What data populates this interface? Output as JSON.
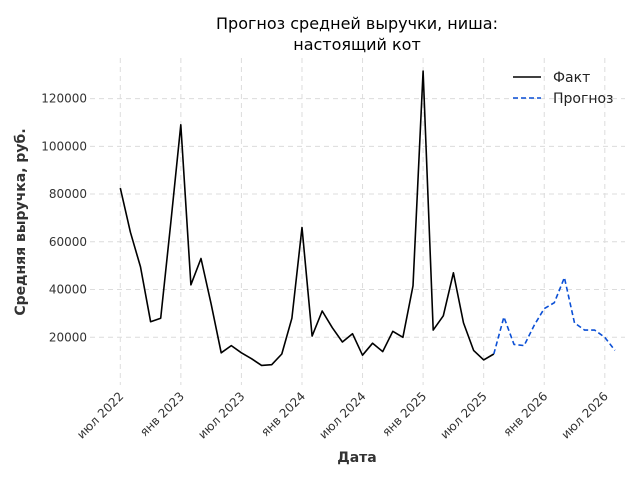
{
  "chart_data": {
    "type": "line",
    "title_line1": "Прогноз средней выручки, ниша:",
    "title_line2": "настоящий кот",
    "xlabel": "Дата",
    "ylabel": "Средняя выручка, руб.",
    "x_ticks": [
      "июл 2022",
      "янв 2023",
      "июл 2023",
      "янв 2024",
      "июл 2024",
      "янв 2025",
      "июл 2025",
      "янв 2026",
      "июл 2026"
    ],
    "y_ticks": [
      "20000",
      "40000",
      "60000",
      "80000",
      "100000",
      "120000"
    ],
    "ylim": [
      0,
      137000
    ],
    "xlim": [
      "2022-04",
      "2026-09"
    ],
    "grid": true,
    "legend_position": "top-right",
    "series": [
      {
        "name": "Факт",
        "color": "#000000",
        "style": "solid",
        "x": [
          "2022-07",
          "2022-08",
          "2022-09",
          "2022-10",
          "2022-11",
          "2022-12",
          "2023-01",
          "2023-02",
          "2023-03",
          "2023-04",
          "2023-05",
          "2023-06",
          "2023-07",
          "2023-08",
          "2023-09",
          "2023-10",
          "2023-11",
          "2023-12",
          "2024-01",
          "2024-02",
          "2024-03",
          "2024-04",
          "2024-05",
          "2024-06",
          "2024-07",
          "2024-08",
          "2024-09",
          "2024-10",
          "2024-11",
          "2024-12",
          "2025-01",
          "2025-02",
          "2025-03",
          "2025-04",
          "2025-05",
          "2025-06",
          "2025-07",
          "2025-08"
        ],
        "values": [
          82500,
          64000,
          49500,
          26500,
          28000,
          68000,
          109000,
          42000,
          53000,
          34000,
          13500,
          16500,
          13500,
          11000,
          8200,
          8500,
          13000,
          28000,
          66000,
          20500,
          31000,
          24000,
          18000,
          21500,
          12500,
          17500,
          14000,
          22500,
          20000,
          41500,
          131500,
          23000,
          29000,
          47000,
          26000,
          14500,
          10500,
          13000
        ]
      },
      {
        "name": "Прогноз",
        "color": "#0a4fd6",
        "style": "dashed",
        "x": [
          "2025-08",
          "2025-09",
          "2025-10",
          "2025-11",
          "2025-12",
          "2026-01",
          "2026-02",
          "2026-03",
          "2026-04",
          "2026-05",
          "2026-06",
          "2026-07",
          "2026-08"
        ],
        "values": [
          13000,
          28500,
          17000,
          16500,
          25000,
          32000,
          34500,
          45000,
          26000,
          23000,
          23000,
          20000,
          14500
        ]
      }
    ]
  }
}
